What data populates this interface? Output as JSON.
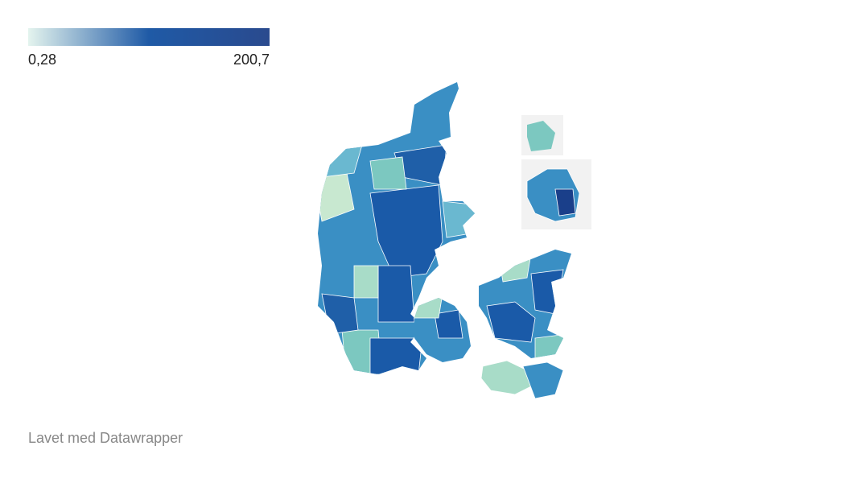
{
  "legend": {
    "colors": [
      "#e4f4ee",
      "#1f5aa6",
      "#2a4a8e"
    ],
    "min": {
      "value": 0.28,
      "label": "0,28"
    },
    "max": {
      "value": 200.7,
      "label": "200,7"
    }
  },
  "footer": "Lavet med Datawrapper"
}
